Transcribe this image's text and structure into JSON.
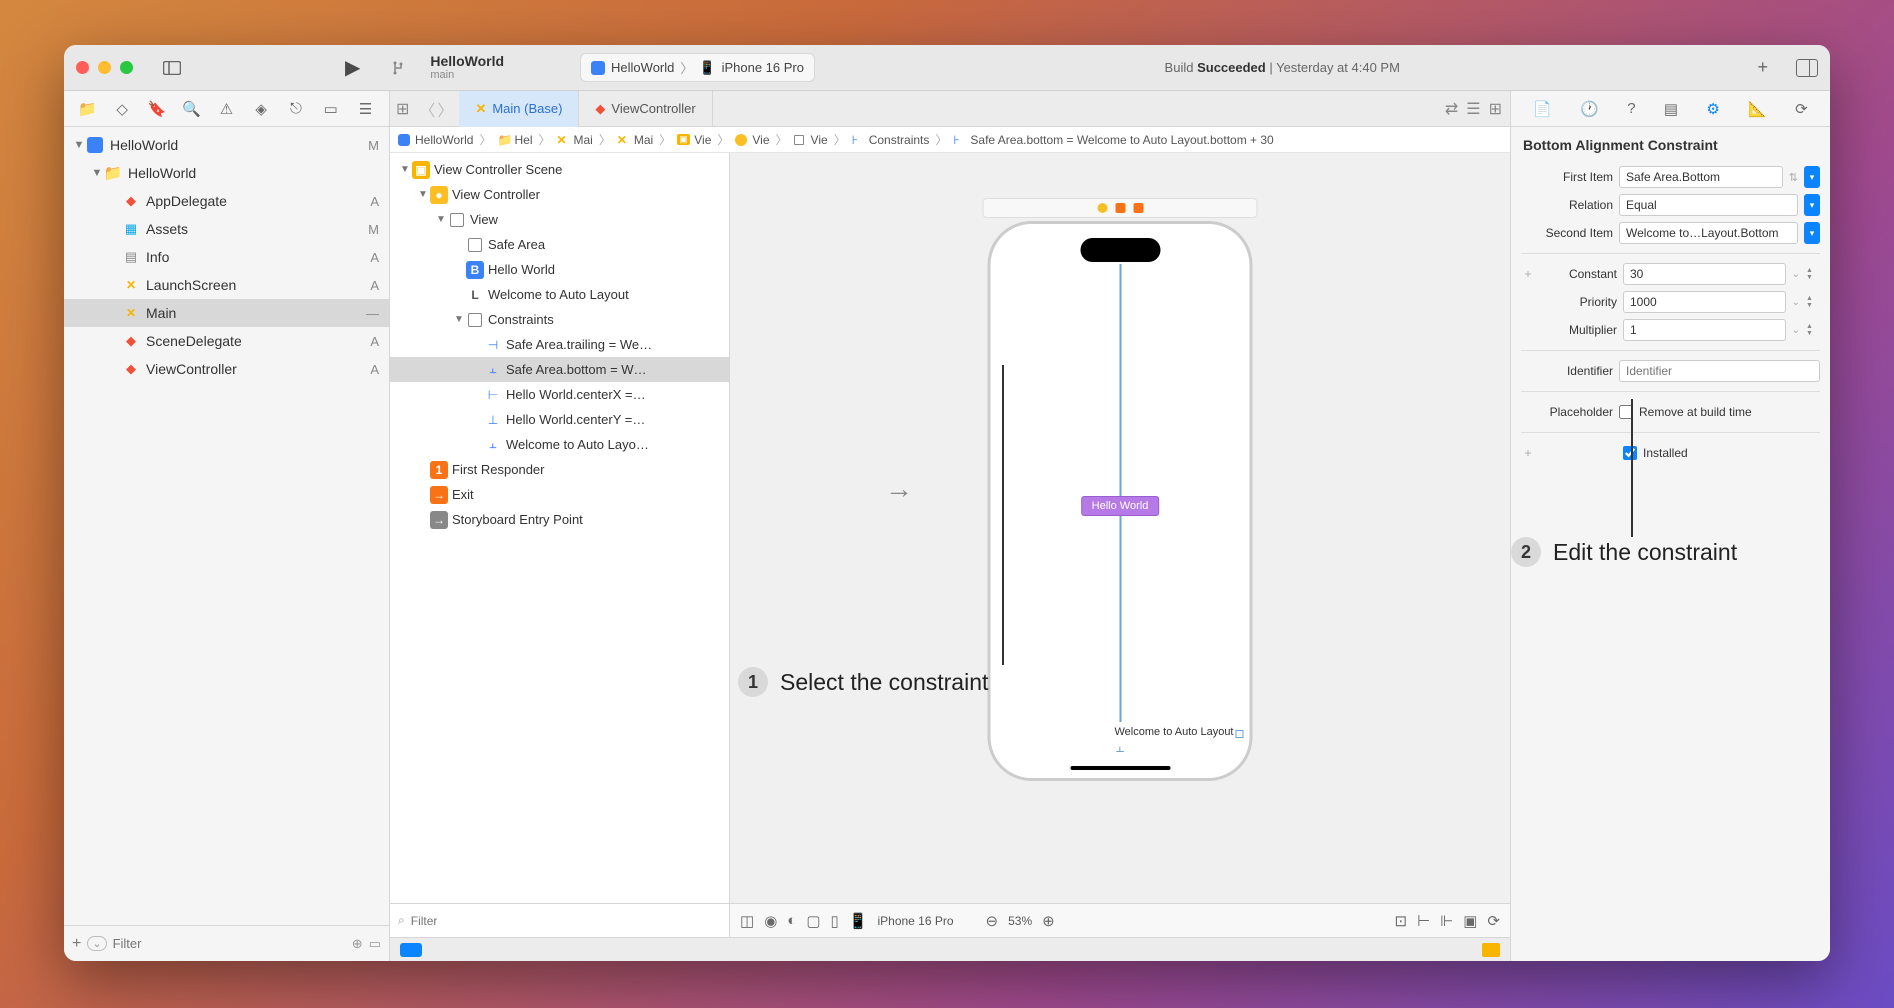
{
  "colors": {
    "accent": "#0a84ff",
    "swift": "#f05138",
    "ib": "#f7b500",
    "folder": "#3b82f6",
    "selection": "#d8d8d8",
    "hello_btn": "#b57ae5",
    "guide": "#6aa3d8"
  },
  "titlebar": {
    "project": "HelloWorld",
    "branch": "main",
    "scheme_app": "HelloWorld",
    "scheme_device": "iPhone 16 Pro",
    "build_status_prefix": "Build ",
    "build_status_bold": "Succeeded",
    "build_status_suffix": " | Yesterday at 4:40 PM"
  },
  "nav": {
    "items": [
      {
        "indent": 0,
        "disc": "▼",
        "ico": "proj",
        "label": "HelloWorld",
        "badge": "M"
      },
      {
        "indent": 1,
        "disc": "▼",
        "ico": "fold",
        "label": "HelloWorld",
        "badge": ""
      },
      {
        "indent": 2,
        "disc": "",
        "ico": "swift",
        "label": "AppDelegate",
        "badge": "A"
      },
      {
        "indent": 2,
        "disc": "",
        "ico": "asset",
        "label": "Assets",
        "badge": "M"
      },
      {
        "indent": 2,
        "disc": "",
        "ico": "plist",
        "label": "Info",
        "badge": "A"
      },
      {
        "indent": 2,
        "disc": "",
        "ico": "ib",
        "label": "LaunchScreen",
        "badge": "A"
      },
      {
        "indent": 2,
        "disc": "",
        "ico": "ib",
        "label": "Main",
        "badge": "—",
        "sel": true
      },
      {
        "indent": 2,
        "disc": "",
        "ico": "swift",
        "label": "SceneDelegate",
        "badge": "A"
      },
      {
        "indent": 2,
        "disc": "",
        "ico": "swift",
        "label": "ViewController",
        "badge": "A"
      }
    ],
    "filter_placeholder": "Filter"
  },
  "tabs": {
    "active": {
      "label": "Main (Base)"
    },
    "other": {
      "label": "ViewController"
    }
  },
  "crumbs": [
    {
      "ico": "proj",
      "label": "HelloWorld"
    },
    {
      "ico": "fold",
      "label": "Hel"
    },
    {
      "ico": "ib",
      "label": "Mai"
    },
    {
      "ico": "ib",
      "label": "Mai"
    },
    {
      "ico": "scene",
      "label": "Vie"
    },
    {
      "ico": "vc",
      "label": "Vie"
    },
    {
      "ico": "view",
      "label": "Vie"
    },
    {
      "ico": "constraint",
      "label": "Constraints"
    },
    {
      "ico": "constraint",
      "label": "Safe Area.bottom = Welcome to Auto Layout.bottom + 30"
    }
  ],
  "outline": {
    "items": [
      {
        "indent": 0,
        "disc": "▼",
        "ico": "scene",
        "label": "View Controller Scene"
      },
      {
        "indent": 1,
        "disc": "▼",
        "ico": "vc",
        "label": "View Controller"
      },
      {
        "indent": 2,
        "disc": "▼",
        "ico": "view",
        "label": "View"
      },
      {
        "indent": 3,
        "disc": "",
        "ico": "view",
        "label": "Safe Area"
      },
      {
        "indent": 3,
        "disc": "",
        "ico": "btn",
        "label": "Hello World"
      },
      {
        "indent": 3,
        "disc": "",
        "ico": "label",
        "label": "Welcome to Auto Layout"
      },
      {
        "indent": 3,
        "disc": "▼",
        "ico": "view",
        "label": "Constraints"
      },
      {
        "indent": 4,
        "disc": "",
        "ico": "c-trail",
        "label": "Safe Area.trailing = We…"
      },
      {
        "indent": 4,
        "disc": "",
        "ico": "c-bot",
        "label": "Safe Area.bottom = W…",
        "sel": true
      },
      {
        "indent": 4,
        "disc": "",
        "ico": "c-cx",
        "label": "Hello World.centerX =…"
      },
      {
        "indent": 4,
        "disc": "",
        "ico": "c-cy",
        "label": "Hello World.centerY =…"
      },
      {
        "indent": 4,
        "disc": "",
        "ico": "c-bot",
        "label": "Welcome to Auto Layo…"
      },
      {
        "indent": 1,
        "disc": "",
        "ico": "first",
        "label": "First Responder"
      },
      {
        "indent": 1,
        "disc": "",
        "ico": "exit",
        "label": "Exit"
      },
      {
        "indent": 1,
        "disc": "",
        "ico": "entry",
        "label": "Storyboard Entry Point"
      }
    ],
    "filter_placeholder": "Filter"
  },
  "canvas": {
    "hello_label": "Hello World",
    "welcome_label": "Welcome to Auto Layout",
    "bottom_bar": {
      "device": "iPhone 16 Pro",
      "zoom": "53%"
    }
  },
  "inspector": {
    "title": "Bottom Alignment Constraint",
    "rows": {
      "first_item": {
        "label": "First Item",
        "value": "Safe Area.Bottom"
      },
      "relation": {
        "label": "Relation",
        "value": "Equal"
      },
      "second_item": {
        "label": "Second Item",
        "value": "Welcome to…Layout.Bottom"
      },
      "constant": {
        "label": "Constant",
        "value": "30"
      },
      "priority": {
        "label": "Priority",
        "value": "1000"
      },
      "multiplier": {
        "label": "Multiplier",
        "value": "1"
      },
      "identifier": {
        "label": "Identifier",
        "placeholder": "Identifier"
      },
      "placeholder": {
        "label": "Placeholder",
        "checkbox_label": "Remove at build time"
      },
      "installed": {
        "label": "Installed"
      }
    }
  },
  "callouts": {
    "c1": {
      "num": "1",
      "text": "Select the constraint"
    },
    "c2": {
      "num": "2",
      "text": "Edit the constraint"
    }
  }
}
